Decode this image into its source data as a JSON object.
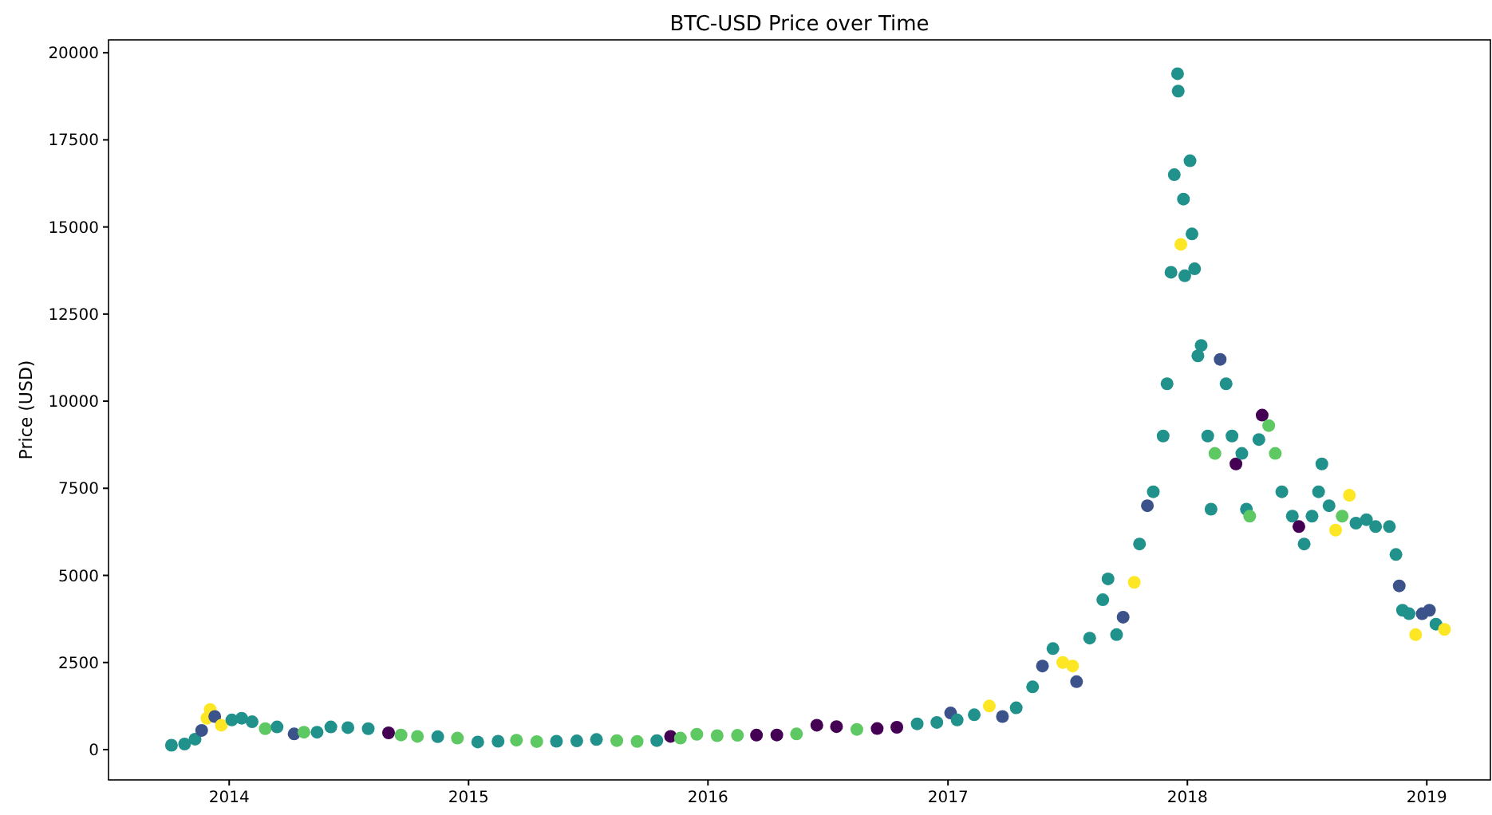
{
  "chart_data": {
    "type": "scatter",
    "title": "BTC-USD Price over Time",
    "ylabel": "Price (USD)",
    "marker": "circle",
    "xlim": [
      "2013-07-01",
      "2019-04-08"
    ],
    "ylim": [
      -870,
      20370
    ],
    "xticks": [
      {
        "value": "2014-01-01",
        "label": "2014"
      },
      {
        "value": "2015-01-01",
        "label": "2015"
      },
      {
        "value": "2016-01-01",
        "label": "2016"
      },
      {
        "value": "2017-01-01",
        "label": "2017"
      },
      {
        "value": "2018-01-01",
        "label": "2018"
      },
      {
        "value": "2019-01-01",
        "label": "2019"
      }
    ],
    "yticks": [
      0,
      2500,
      5000,
      7500,
      10000,
      12500,
      15000,
      17500,
      20000
    ],
    "x": [
      "2013-10-05",
      "2013-10-25",
      "2013-11-10",
      "2013-11-20",
      "2013-11-28",
      "2013-12-03",
      "2013-12-10",
      "2013-12-20",
      "2014-01-05",
      "2014-01-20",
      "2014-02-05",
      "2014-02-25",
      "2014-03-15",
      "2014-04-10",
      "2014-04-25",
      "2014-05-15",
      "2014-06-05",
      "2014-07-01",
      "2014-08-01",
      "2014-09-01",
      "2014-09-20",
      "2014-10-15",
      "2014-11-15",
      "2014-12-15",
      "2015-01-15",
      "2015-02-15",
      "2015-03-15",
      "2015-04-15",
      "2015-05-15",
      "2015-06-15",
      "2015-07-15",
      "2015-08-15",
      "2015-09-15",
      "2015-10-15",
      "2015-11-05",
      "2015-11-20",
      "2015-12-15",
      "2016-01-15",
      "2016-02-15",
      "2016-03-15",
      "2016-04-15",
      "2016-05-15",
      "2016-06-15",
      "2016-07-15",
      "2016-08-15",
      "2016-09-15",
      "2016-10-15",
      "2016-11-15",
      "2016-12-15",
      "2017-01-05",
      "2017-01-15",
      "2017-02-10",
      "2017-03-05",
      "2017-03-25",
      "2017-04-15",
      "2017-05-10",
      "2017-05-25",
      "2017-06-10",
      "2017-06-25",
      "2017-07-10",
      "2017-07-16",
      "2017-08-05",
      "2017-08-25",
      "2017-09-02",
      "2017-09-15",
      "2017-09-25",
      "2017-10-12",
      "2017-10-20",
      "2017-11-01",
      "2017-11-10",
      "2017-11-25",
      "2017-12-01",
      "2017-12-07",
      "2017-12-12",
      "2017-12-17",
      "2017-12-18",
      "2017-12-22",
      "2017-12-26",
      "2017-12-28",
      "2018-01-05",
      "2018-01-08",
      "2018-01-12",
      "2018-01-17",
      "2018-01-22",
      "2018-02-01",
      "2018-02-06",
      "2018-02-12",
      "2018-02-20",
      "2018-03-01",
      "2018-03-10",
      "2018-03-16",
      "2018-03-25",
      "2018-04-01",
      "2018-04-06",
      "2018-04-20",
      "2018-04-25",
      "2018-05-05",
      "2018-05-15",
      "2018-05-25",
      "2018-06-10",
      "2018-06-20",
      "2018-06-28",
      "2018-07-10",
      "2018-07-20",
      "2018-07-25",
      "2018-08-05",
      "2018-08-15",
      "2018-08-25",
      "2018-09-05",
      "2018-09-15",
      "2018-10-01",
      "2018-10-15",
      "2018-11-05",
      "2018-11-15",
      "2018-11-20",
      "2018-11-25",
      "2018-12-05",
      "2018-12-15",
      "2018-12-25",
      "2019-01-05",
      "2019-01-15",
      "2019-01-28"
    ],
    "values": [
      125,
      160,
      300,
      550,
      900,
      1150,
      950,
      700,
      850,
      900,
      800,
      600,
      650,
      450,
      500,
      500,
      650,
      630,
      600,
      480,
      420,
      380,
      370,
      330,
      220,
      240,
      270,
      230,
      240,
      250,
      290,
      260,
      235,
      260,
      380,
      330,
      440,
      400,
      410,
      415,
      420,
      450,
      700,
      660,
      580,
      605,
      640,
      740,
      780,
      1050,
      850,
      1000,
      1250,
      950,
      1200,
      1800,
      2400,
      2900,
      2500,
      2400,
      1950,
      3200,
      4300,
      4900,
      3300,
      3800,
      4800,
      5900,
      7000,
      7400,
      9000,
      10500,
      13700,
      16500,
      19400,
      18900,
      14500,
      15800,
      13600,
      16900,
      14800,
      13800,
      11300,
      11600,
      9000,
      6900,
      8500,
      11200,
      10500,
      9000,
      8200,
      8500,
      6900,
      6700,
      8900,
      9600,
      9300,
      8500,
      7400,
      6700,
      6400,
      5900,
      6700,
      7400,
      8200,
      7000,
      6300,
      6700,
      7300,
      6500,
      6600,
      6400,
      6400,
      5600,
      4700,
      4000,
      3900,
      3300,
      3900,
      4000,
      3600,
      3450
    ],
    "colors": [
      "#21918c",
      "#21918c",
      "#21918c",
      "#3b528b",
      "#fde725",
      "#fde725",
      "#3b528b",
      "#fde725",
      "#21918c",
      "#21918c",
      "#21918c",
      "#5ec962",
      "#21918c",
      "#3b528b",
      "#5ec962",
      "#21918c",
      "#21918c",
      "#21918c",
      "#21918c",
      "#440154",
      "#5ec962",
      "#5ec962",
      "#21918c",
      "#5ec962",
      "#21918c",
      "#21918c",
      "#5ec962",
      "#5ec962",
      "#21918c",
      "#21918c",
      "#21918c",
      "#5ec962",
      "#5ec962",
      "#21918c",
      "#440154",
      "#5ec962",
      "#5ec962",
      "#5ec962",
      "#5ec962",
      "#440154",
      "#440154",
      "#5ec962",
      "#440154",
      "#440154",
      "#5ec962",
      "#440154",
      "#440154",
      "#21918c",
      "#21918c",
      "#3b528b",
      "#21918c",
      "#21918c",
      "#fde725",
      "#3b528b",
      "#21918c",
      "#21918c",
      "#3b528b",
      "#21918c",
      "#fde725",
      "#fde725",
      "#3b528b",
      "#21918c",
      "#21918c",
      "#21918c",
      "#21918c",
      "#3b528b",
      "#fde725",
      "#21918c",
      "#3b528b",
      "#21918c",
      "#21918c",
      "#21918c",
      "#21918c",
      "#21918c",
      "#21918c",
      "#21918c",
      "#fde725",
      "#21918c",
      "#21918c",
      "#21918c",
      "#21918c",
      "#21918c",
      "#21918c",
      "#21918c",
      "#21918c",
      "#21918c",
      "#5ec962",
      "#3b528b",
      "#21918c",
      "#21918c",
      "#440154",
      "#21918c",
      "#21918c",
      "#5ec962",
      "#21918c",
      "#440154",
      "#5ec962",
      "#5ec962",
      "#21918c",
      "#21918c",
      "#440154",
      "#21918c",
      "#21918c",
      "#21918c",
      "#21918c",
      "#21918c",
      "#fde725",
      "#5ec962",
      "#fde725",
      "#21918c",
      "#21918c",
      "#21918c",
      "#21918c",
      "#21918c",
      "#3b528b",
      "#21918c",
      "#21918c",
      "#fde725",
      "#3b528b",
      "#3b528b",
      "#21918c",
      "#fde725"
    ]
  }
}
